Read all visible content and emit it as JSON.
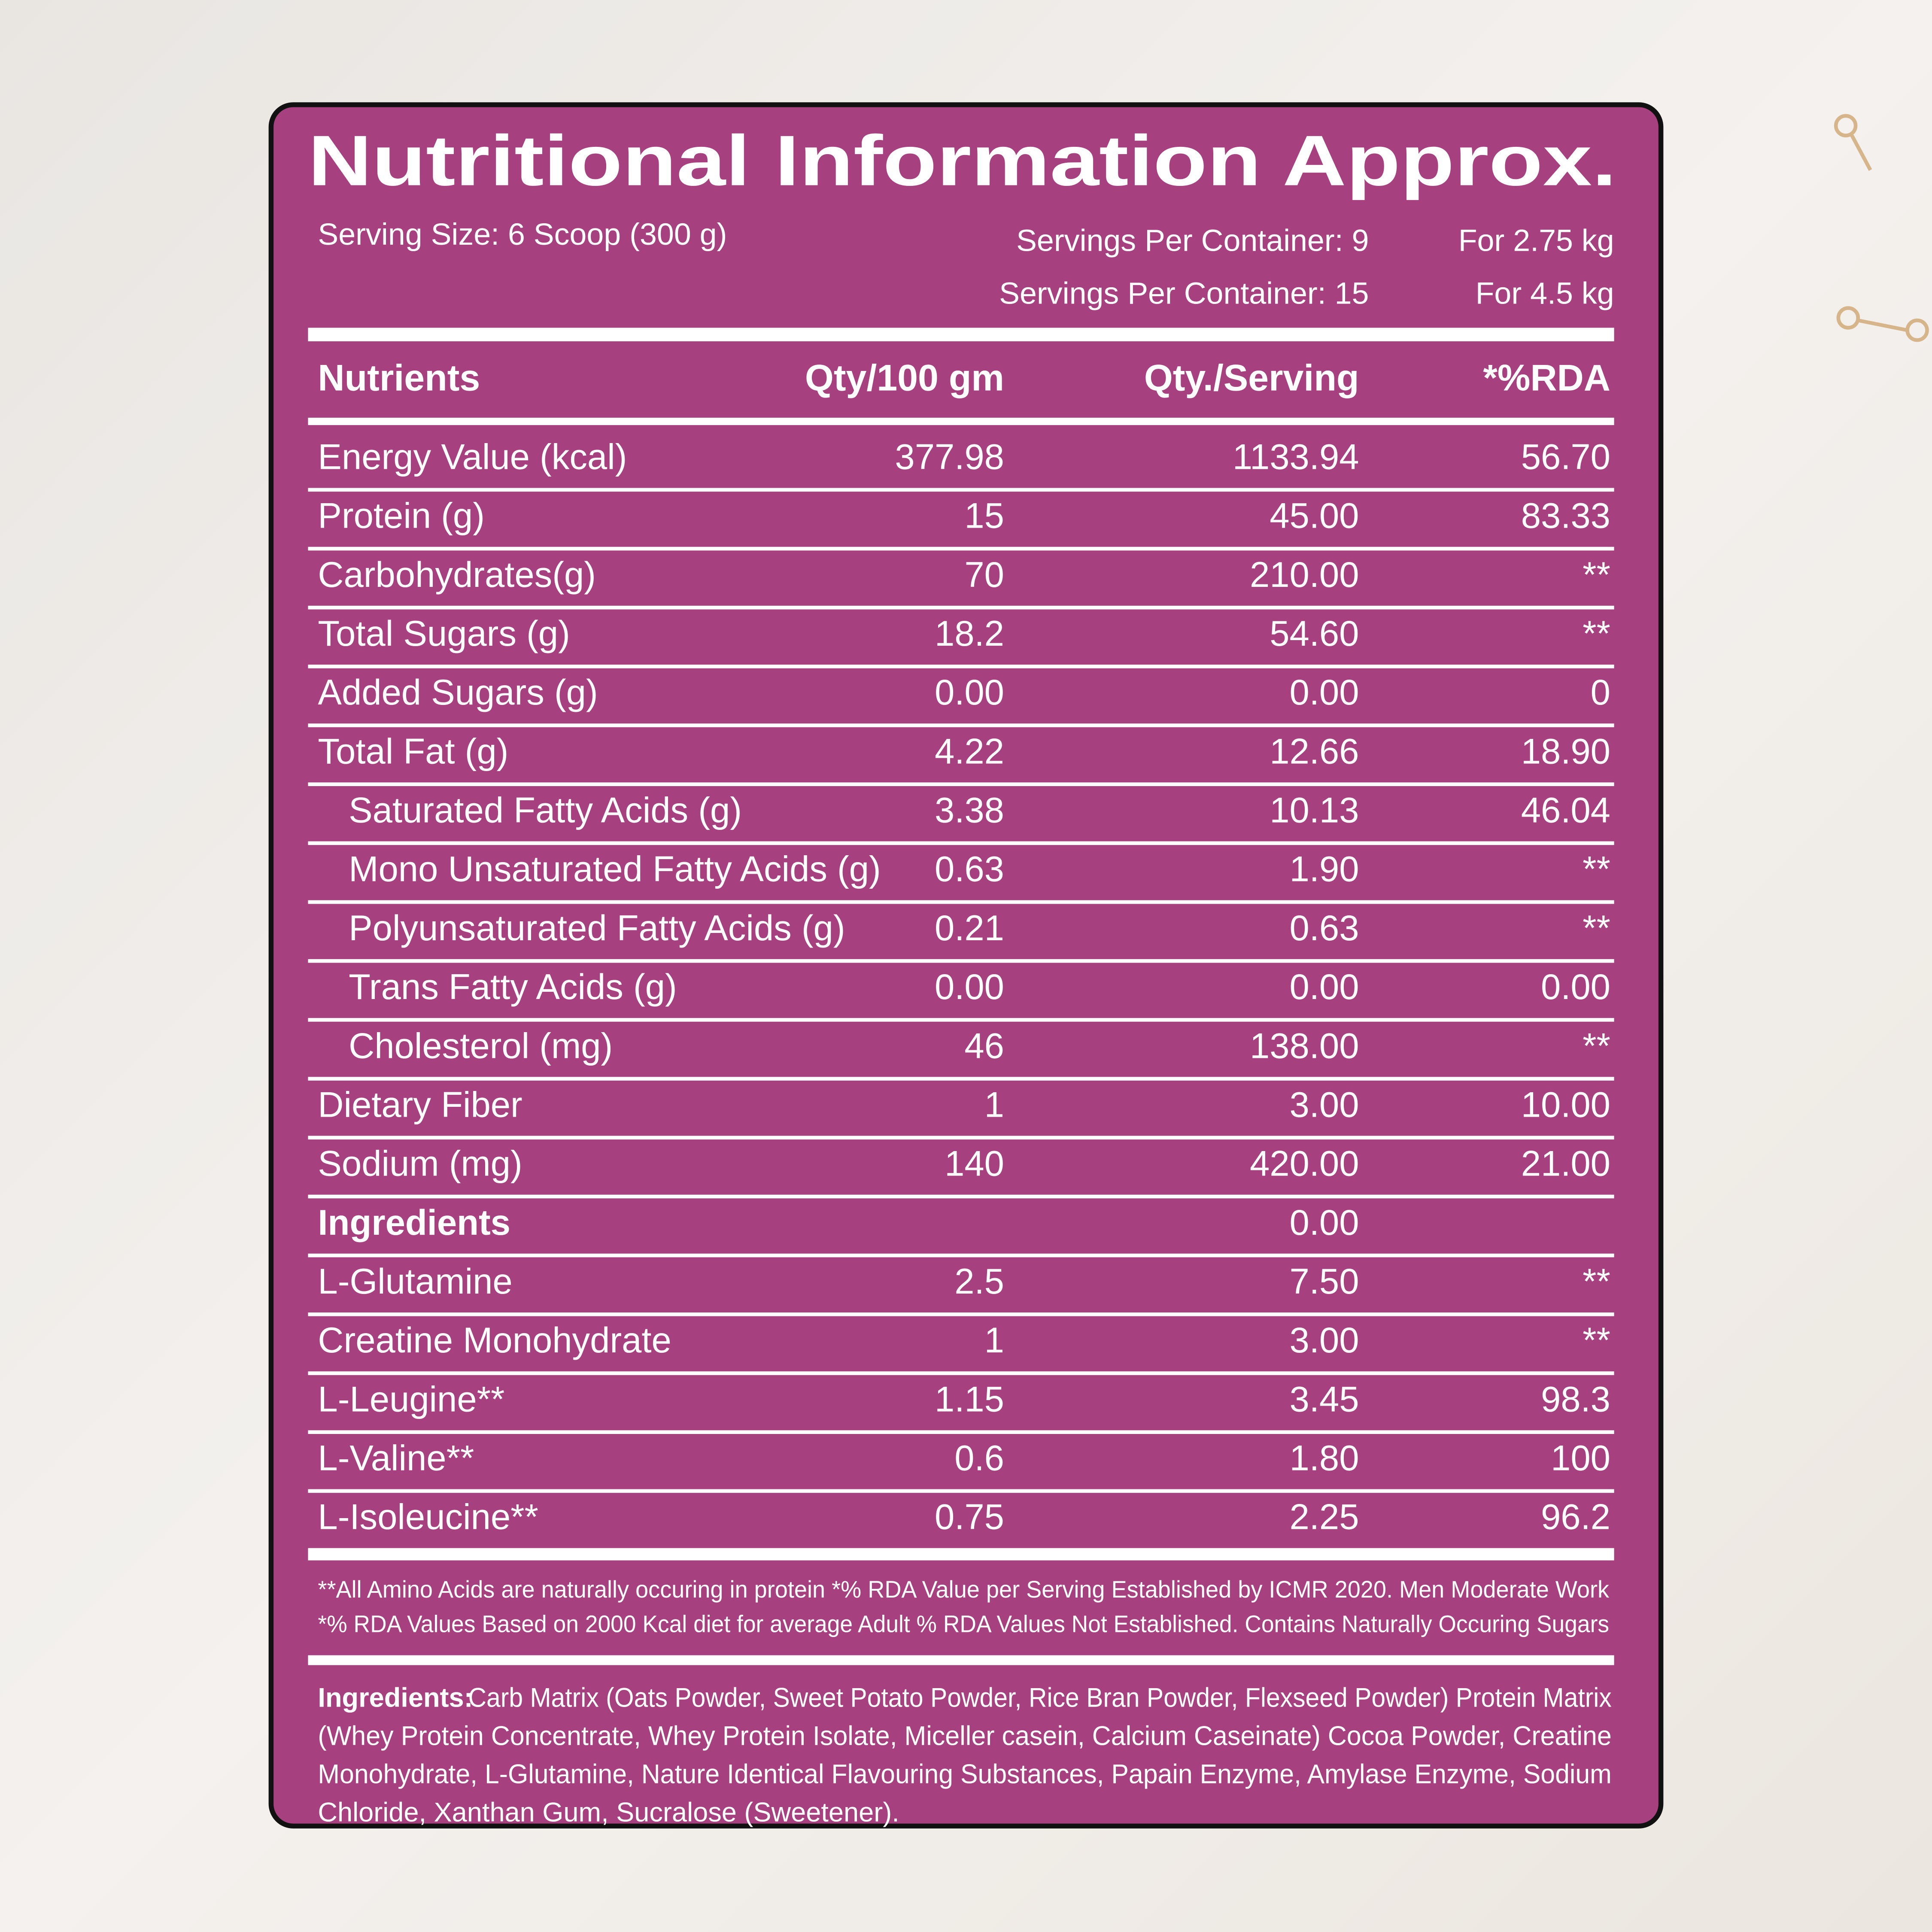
{
  "header": {
    "title": "Nutritional Information Approx."
  },
  "serving": {
    "size": "Serving Size: 6 Scoop (300 g)",
    "rows": [
      [
        "Servings Per Container: 9",
        "For 2.75 kg"
      ],
      [
        "Servings Per Container: 15",
        "For 4.5 kg"
      ]
    ]
  },
  "table": {
    "header": [
      "Nutrients",
      "Qty/100 gm",
      "Qty./Serving",
      "*%RDA"
    ],
    "rows": [
      [
        "Energy Value (kcal)",
        "377.98",
        "1133.94",
        "56.70"
      ],
      [
        "Protein (g)",
        "15",
        "45.00",
        "83.33"
      ],
      [
        "Carbohydrates(g)",
        "70",
        "210.00",
        "**"
      ],
      [
        "Total Sugars (g)",
        "18.2",
        "54.60",
        "**"
      ],
      [
        "Added Sugars (g)",
        "0.00",
        "0.00",
        "0"
      ],
      [
        "Total Fat (g)",
        "4.22",
        "12.66",
        "18.90"
      ],
      [
        "Saturated Fatty Acids (g)",
        "3.38",
        "10.13",
        "46.04"
      ],
      [
        "Mono Unsaturated Fatty Acids (g)",
        "0.63",
        "1.90",
        "**"
      ],
      [
        "Polyunsaturated Fatty Acids (g)",
        "0.21",
        "0.63",
        "**"
      ],
      [
        "Trans Fatty Acids (g)",
        "0.00",
        "0.00",
        "0.00"
      ],
      [
        "Cholesterol (mg)",
        "46",
        "138.00",
        "**"
      ],
      [
        "Dietary Fiber",
        "1",
        "3.00",
        "10.00"
      ],
      [
        "Sodium (mg)",
        "140",
        "420.00",
        "21.00"
      ],
      [
        "Ingredients",
        null,
        "0.00",
        null
      ],
      [
        "L-Glutamine",
        "2.5",
        "7.50",
        "**"
      ],
      [
        "Creatine Monohydrate",
        "1",
        "3.00",
        "**"
      ],
      [
        "L-Leugine**",
        "1.15",
        "3.45",
        "98.3"
      ],
      [
        "L-Valine**",
        "0.6",
        "1.80",
        "100"
      ],
      [
        "L-Isoleucine**",
        "0.75",
        "2.25",
        "96.2"
      ]
    ]
  },
  "footnotes": [
    "**All Amino Acids are naturally occuring in protein *% RDA Value per Serving Established by ICMR 2020. Men Moderate Work",
    "*% RDA Values Based on 2000 Kcal diet for average Adult % RDA Values Not Established. Contains Naturally Occuring Sugars"
  ],
  "ingredients": {
    "label": "Ingredients:",
    "lines": [
      "Carb Matrix (Oats Powder, Sweet Potato Powder, Rice Bran Powder, Flexseed Powder) Protein Matrix",
      "(Whey Protein Concentrate, Whey Protein Isolate, Miceller casein, Calcium Caseinate) Cocoa Powder, Creatine",
      "Monohydrate, L-Glutamine, Nature Identical Flavouring Substances, Papain Enzyme, Amylase Enzyme, Sodium",
      "Chloride, Xanthan Gum, Sucralose (Sweetener)."
    ]
  }
}
